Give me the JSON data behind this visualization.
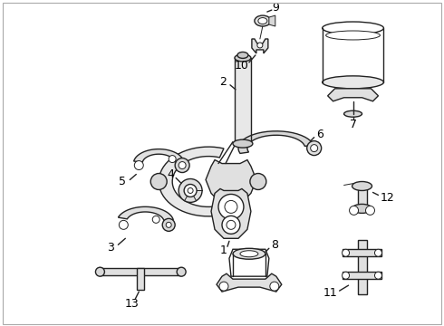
{
  "background_color": "#ffffff",
  "line_color": "#222222",
  "label_color": "#000000",
  "figsize": [
    4.9,
    3.6
  ],
  "dpi": 100,
  "border_color": "#cccccc"
}
